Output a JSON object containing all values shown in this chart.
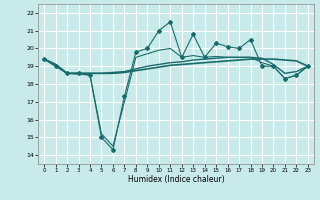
{
  "title": "",
  "xlabel": "Humidex (Indice chaleur)",
  "bg_color": "#c8eaea",
  "grid_color": "#ffffff",
  "line_color": "#1a6b6b",
  "xlim": [
    -0.5,
    23.5
  ],
  "ylim": [
    13.5,
    22.5
  ],
  "yticks": [
    14,
    15,
    16,
    17,
    18,
    19,
    20,
    21,
    22
  ],
  "xticks": [
    0,
    1,
    2,
    3,
    4,
    5,
    6,
    7,
    8,
    9,
    10,
    11,
    12,
    13,
    14,
    15,
    16,
    17,
    18,
    19,
    20,
    21,
    22,
    23
  ],
  "series_jagged": [
    19.4,
    19.0,
    18.6,
    18.6,
    18.5,
    15.0,
    14.3,
    17.3,
    19.8,
    20.0,
    21.0,
    21.5,
    19.5,
    20.8,
    19.5,
    20.3,
    20.1,
    20.0,
    20.5,
    19.0,
    19.0,
    18.3,
    18.5,
    19.0
  ],
  "series_smooth1": [
    19.4,
    19.1,
    18.6,
    18.6,
    18.6,
    18.6,
    18.6,
    18.65,
    18.75,
    18.85,
    18.95,
    19.05,
    19.1,
    19.15,
    19.2,
    19.25,
    19.3,
    19.35,
    19.4,
    19.4,
    19.4,
    19.35,
    19.3,
    19.0
  ],
  "series_smooth2": [
    19.4,
    19.1,
    18.6,
    18.6,
    18.6,
    18.6,
    18.65,
    18.7,
    18.85,
    19.0,
    19.1,
    19.2,
    19.25,
    19.35,
    19.4,
    19.45,
    19.5,
    19.5,
    19.5,
    19.45,
    19.1,
    18.6,
    18.7,
    19.0
  ],
  "series_bottom": [
    19.4,
    19.0,
    18.6,
    18.55,
    18.5,
    15.2,
    14.5,
    17.0,
    19.5,
    19.7,
    19.9,
    20.0,
    19.5,
    19.6,
    19.5,
    19.55,
    19.5,
    19.5,
    19.5,
    19.2,
    19.0,
    18.3,
    18.5,
    19.0
  ]
}
